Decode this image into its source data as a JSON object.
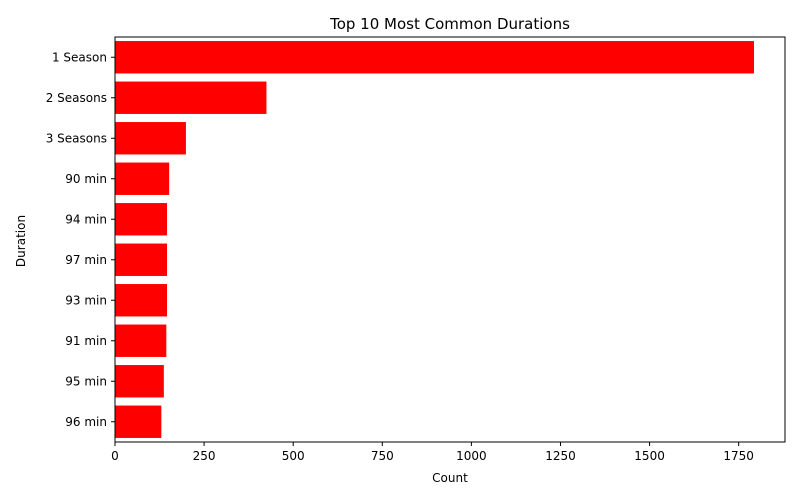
{
  "chart_data": {
    "type": "bar",
    "orientation": "horizontal",
    "title": "Top 10 Most Common Durations",
    "xlabel": "Count",
    "ylabel": "Duration",
    "categories": [
      "1 Season",
      "2 Seasons",
      "3 Seasons",
      "90 min",
      "94 min",
      "97 min",
      "93 min",
      "91 min",
      "95 min",
      "96 min"
    ],
    "values": [
      1793,
      425,
      199,
      152,
      146,
      146,
      146,
      144,
      137,
      130
    ],
    "xlim": [
      0,
      1880
    ],
    "xticks": [
      0,
      250,
      500,
      750,
      1000,
      1250,
      1500,
      1750
    ],
    "grid": false,
    "bar_color": "#ff0000"
  }
}
